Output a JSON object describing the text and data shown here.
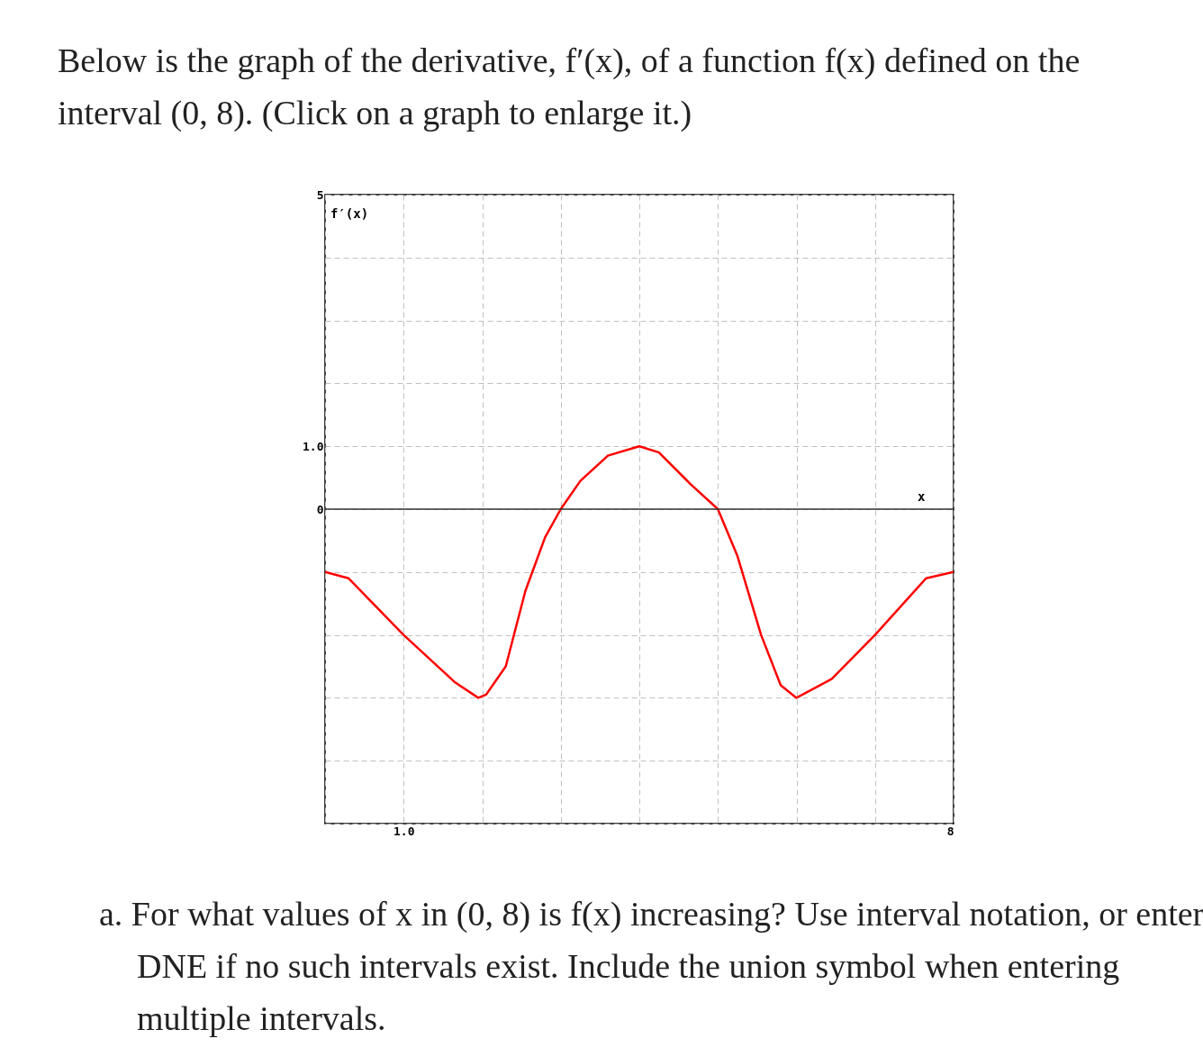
{
  "chart_data": {
    "type": "line",
    "title": "Below is the graph of the derivative, f′(x), of a function f(x) defined on the interval (0, 8). (Click on a graph to enlarge it.)",
    "xlabel": "x",
    "ylabel": "f′(x)",
    "annotations": [
      "a. For what values of x in (0, 8) is f(x) increasing? Use interval notation, or enter DNE if no such intervals exist. Include the union symbol when entering multiple intervals."
    ],
    "x": [
      0,
      0.3,
      1,
      1.65,
      1.95,
      2.05,
      2.3,
      2.55,
      2.8,
      3,
      3.25,
      3.6,
      4,
      4.25,
      4.65,
      5,
      5.25,
      5.55,
      5.8,
      6,
      6.45,
      7,
      7.65,
      8
    ],
    "series": [
      {
        "color": "#ff0000",
        "values": [
          -1,
          -1.1,
          -2,
          -2.75,
          -3,
          -2.95,
          -2.5,
          -1.3,
          -0.45,
          0,
          0.45,
          0.85,
          1,
          0.9,
          0.4,
          0,
          -0.75,
          -2,
          -2.8,
          -3,
          -2.7,
          -2,
          -1.1,
          -1
        ]
      }
    ],
    "xlim": [
      0,
      8
    ],
    "ylim": [
      -5,
      5
    ],
    "xticks": [
      {
        "value": 0,
        "label": null
      },
      {
        "value": 1,
        "label": "1.0"
      },
      {
        "value": 2,
        "label": null
      },
      {
        "value": 3,
        "label": null
      },
      {
        "value": 4,
        "label": null
      },
      {
        "value": 5,
        "label": null
      },
      {
        "value": 6,
        "label": null
      },
      {
        "value": 7,
        "label": null
      },
      {
        "value": 8,
        "label": "8"
      }
    ],
    "yticks": [
      {
        "value": -5,
        "label": null
      },
      {
        "value": -4,
        "label": null
      },
      {
        "value": -3,
        "label": null
      },
      {
        "value": -2,
        "label": null
      },
      {
        "value": -1,
        "label": null
      },
      {
        "value": 0,
        "label": "0"
      },
      {
        "value": 1,
        "label": "1.0"
      },
      {
        "value": 2,
        "label": null
      },
      {
        "value": 3,
        "label": null
      },
      {
        "value": 4,
        "label": null
      },
      {
        "value": 5,
        "label": "5"
      }
    ],
    "grid": true,
    "line_style": "solid",
    "marker": "none"
  }
}
